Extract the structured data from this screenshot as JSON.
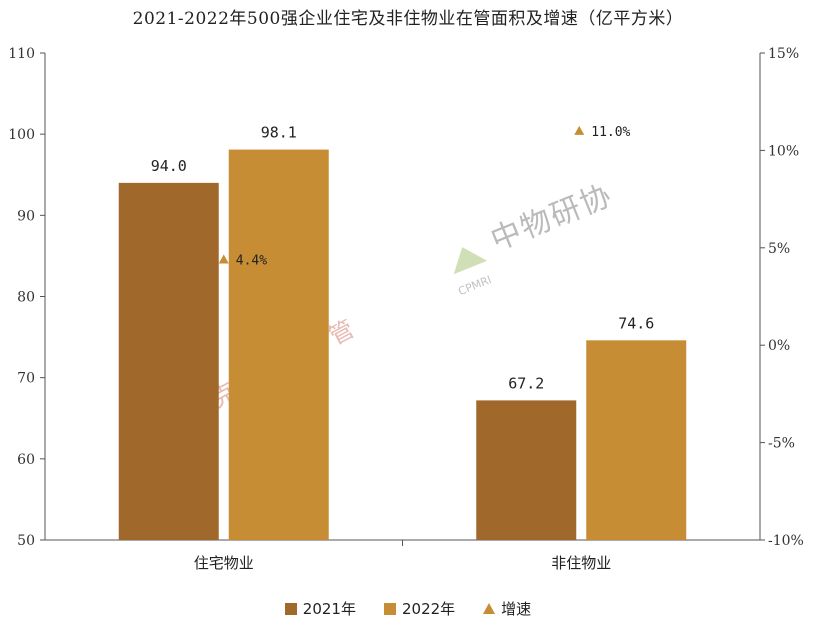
{
  "chart_data": {
    "type": "bar",
    "title": "2021-2022年500强企业住宅及非住物业在管面积及增速（亿平方米）",
    "categories": [
      "住宅物业",
      "非住物业"
    ],
    "series": [
      {
        "name": "2021年",
        "values": [
          94.0,
          67.2
        ],
        "color": "#A0682A",
        "labels": [
          "94.0",
          "67.2"
        ]
      },
      {
        "name": "2022年",
        "values": [
          98.1,
          74.6
        ],
        "color": "#C68D34",
        "labels": [
          "98.1",
          "74.6"
        ]
      }
    ],
    "growth": {
      "name": "增速",
      "values": [
        4.4,
        11.0
      ],
      "labels": [
        "4.4%",
        "11.0%"
      ],
      "color": "#C68D34"
    },
    "ylim": [
      50,
      110
    ],
    "yticks": [
      50,
      60,
      70,
      80,
      90,
      100,
      110
    ],
    "y2lim": [
      -10,
      15
    ],
    "y2ticks": [
      "15%",
      "10%",
      "5%",
      "0%",
      "-5%",
      "-10%"
    ],
    "legend": [
      "2021年",
      "2022年",
      "增速"
    ],
    "legend_position": "bottom"
  },
  "watermarks": {
    "left": "克而瑞·物管",
    "right_cn": "中物研协",
    "right_en": "CPMRI"
  }
}
